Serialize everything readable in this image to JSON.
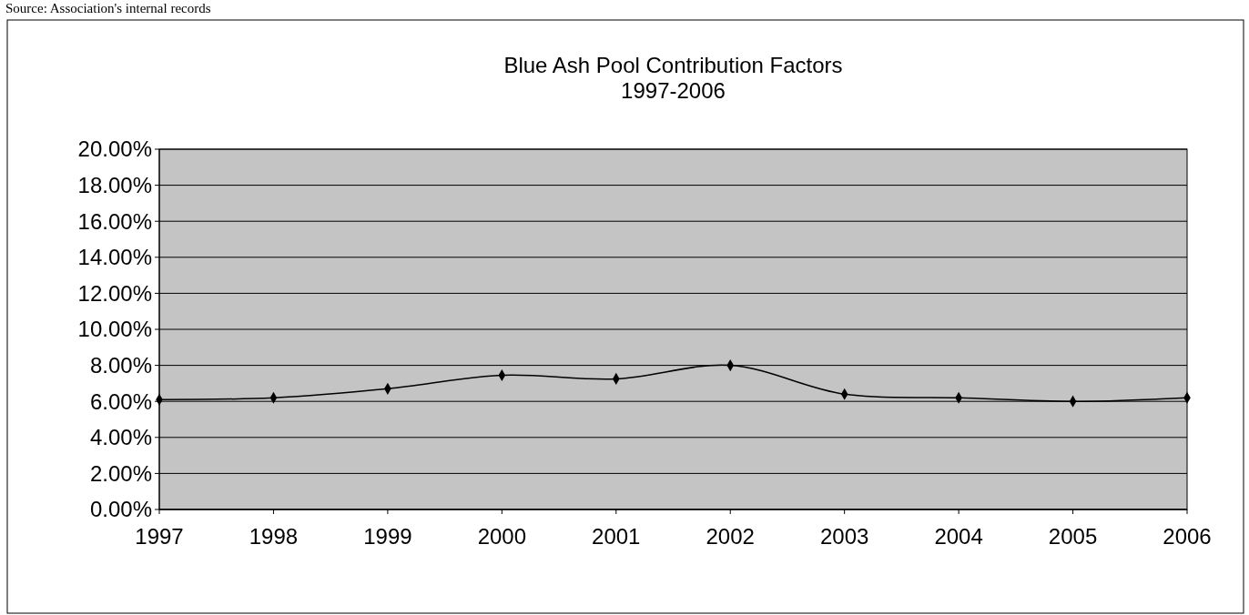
{
  "chart_data": {
    "type": "line",
    "title": "Blue Ash Pool Contribution Factors\n1997-2006",
    "annotations": [
      "Source: Association's internal records"
    ],
    "categories": [
      "1997",
      "1998",
      "1999",
      "2000",
      "2001",
      "2002",
      "2003",
      "2004",
      "2005",
      "2006"
    ],
    "series": [
      {
        "color": "#000000",
        "values": [
          6.1,
          6.2,
          6.7,
          7.45,
          7.25,
          8.0,
          6.4,
          6.2,
          6.0,
          6.2
        ]
      }
    ],
    "ylim": [
      0,
      20
    ],
    "yticks": [
      {
        "value": 0,
        "label": "0.00%"
      },
      {
        "value": 2,
        "label": "2.00%"
      },
      {
        "value": 4,
        "label": "4.00%"
      },
      {
        "value": 6,
        "label": "6.00%"
      },
      {
        "value": 8,
        "label": "8.00%"
      },
      {
        "value": 10,
        "label": "10.00%"
      },
      {
        "value": 12,
        "label": "12.00%"
      },
      {
        "value": 14,
        "label": "14.00%"
      },
      {
        "value": 16,
        "label": "16.00%"
      },
      {
        "value": 18,
        "label": "18.00%"
      },
      {
        "value": 20,
        "label": "20.00%"
      }
    ],
    "grid": "y",
    "marker": "diamond",
    "line_style": "solid"
  }
}
